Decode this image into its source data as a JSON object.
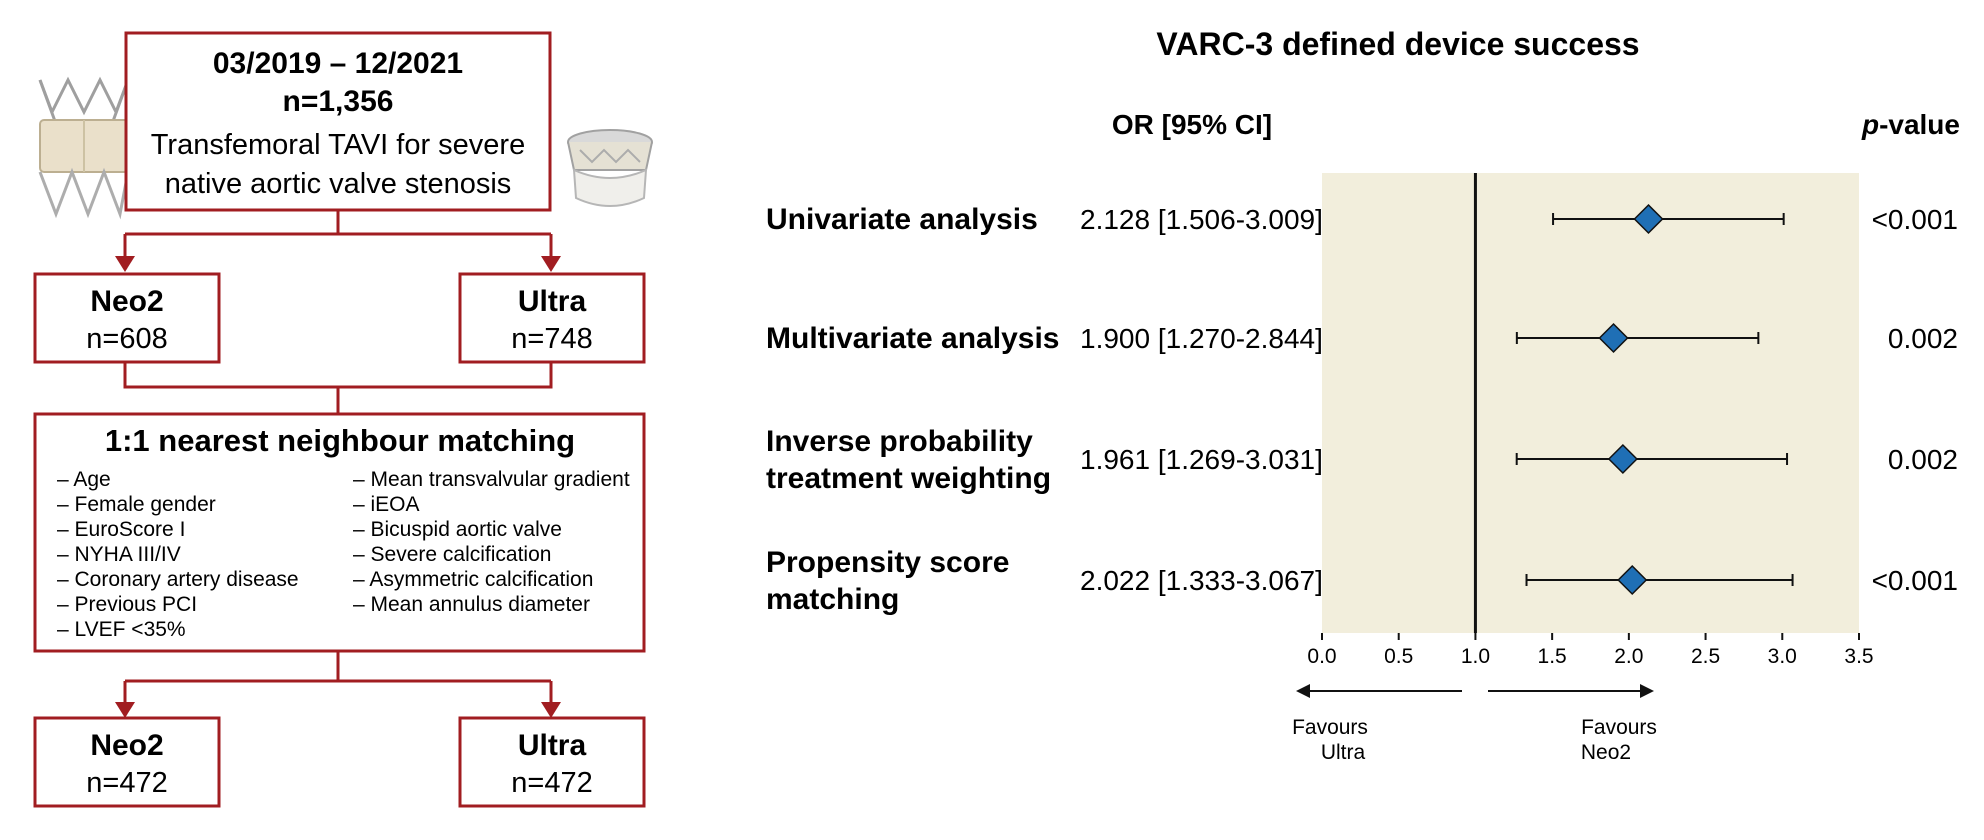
{
  "flowchart": {
    "top_box": {
      "period": "03/2019 – 12/2021",
      "n": "n=1,356",
      "desc_line1": "Transfemoral TAVI for severe",
      "desc_line2": "native aortic valve stenosis"
    },
    "group_left": {
      "name": "Neo2",
      "n": "n=608"
    },
    "group_right": {
      "name": "Ultra",
      "n": "n=748"
    },
    "matching": {
      "title": "1:1 nearest neighbour matching",
      "left_items": [
        "– Age",
        "– Female gender",
        "– EuroScore I",
        "– NYHA III/IV",
        "– Coronary artery disease",
        "– Previous PCI",
        "– LVEF <35%"
      ],
      "right_items": [
        "– Mean transvalvular gradient",
        "– iEOA",
        "– Bicuspid aortic valve",
        "– Severe calcification",
        "– Asymmetric calcification",
        "– Mean annulus diameter"
      ]
    },
    "matched_left": {
      "name": "Neo2",
      "n": "n=472"
    },
    "matched_right": {
      "name": "Ultra",
      "n": "n=472"
    },
    "colors": {
      "border": "#a11d21"
    },
    "icons": [
      "neo2-valve-icon",
      "ultra-valve-icon"
    ]
  },
  "chart_data": {
    "type": "forest",
    "title": "VARC-3 defined device success",
    "col_or_header": "OR [95% CI]",
    "col_p_header_italic": "p",
    "col_p_header_rest": "-value",
    "reference_line": 1.0,
    "xlim": [
      0.0,
      3.5
    ],
    "ticks": [
      "0.0",
      "0.5",
      "1.0",
      "1.5",
      "2.0",
      "2.5",
      "3.0",
      "3.5"
    ],
    "tick_values": [
      0.0,
      0.5,
      1.0,
      1.5,
      2.0,
      2.5,
      3.0,
      3.5
    ],
    "rows": [
      {
        "label_lines": [
          "Univariate analysis"
        ],
        "or": 2.128,
        "lo": 1.506,
        "hi": 3.009,
        "or_text": "2.128 [1.506-3.009]",
        "p": "<0.001"
      },
      {
        "label_lines": [
          "Multivariate analysis"
        ],
        "or": 1.9,
        "lo": 1.27,
        "hi": 2.844,
        "or_text": "1.900 [1.270-2.844]",
        "p": "0.002"
      },
      {
        "label_lines": [
          "Inverse probability",
          "treatment weighting"
        ],
        "or": 1.961,
        "lo": 1.269,
        "hi": 3.031,
        "or_text": "1.961 [1.269-3.031]",
        "p": "0.002"
      },
      {
        "label_lines": [
          "Propensity score",
          "matching"
        ],
        "or": 2.022,
        "lo": 1.333,
        "hi": 3.067,
        "or_text": "2.022 [1.333-3.067]",
        "p": "<0.001"
      }
    ],
    "favours_left": [
      "Favours",
      "Ultra"
    ],
    "favours_right": [
      "Favours",
      "Neo2"
    ],
    "colors": {
      "panel": "#f2eedc",
      "marker": "#1f6fb5",
      "marker_stroke": "#111111",
      "line": "#111111"
    }
  }
}
